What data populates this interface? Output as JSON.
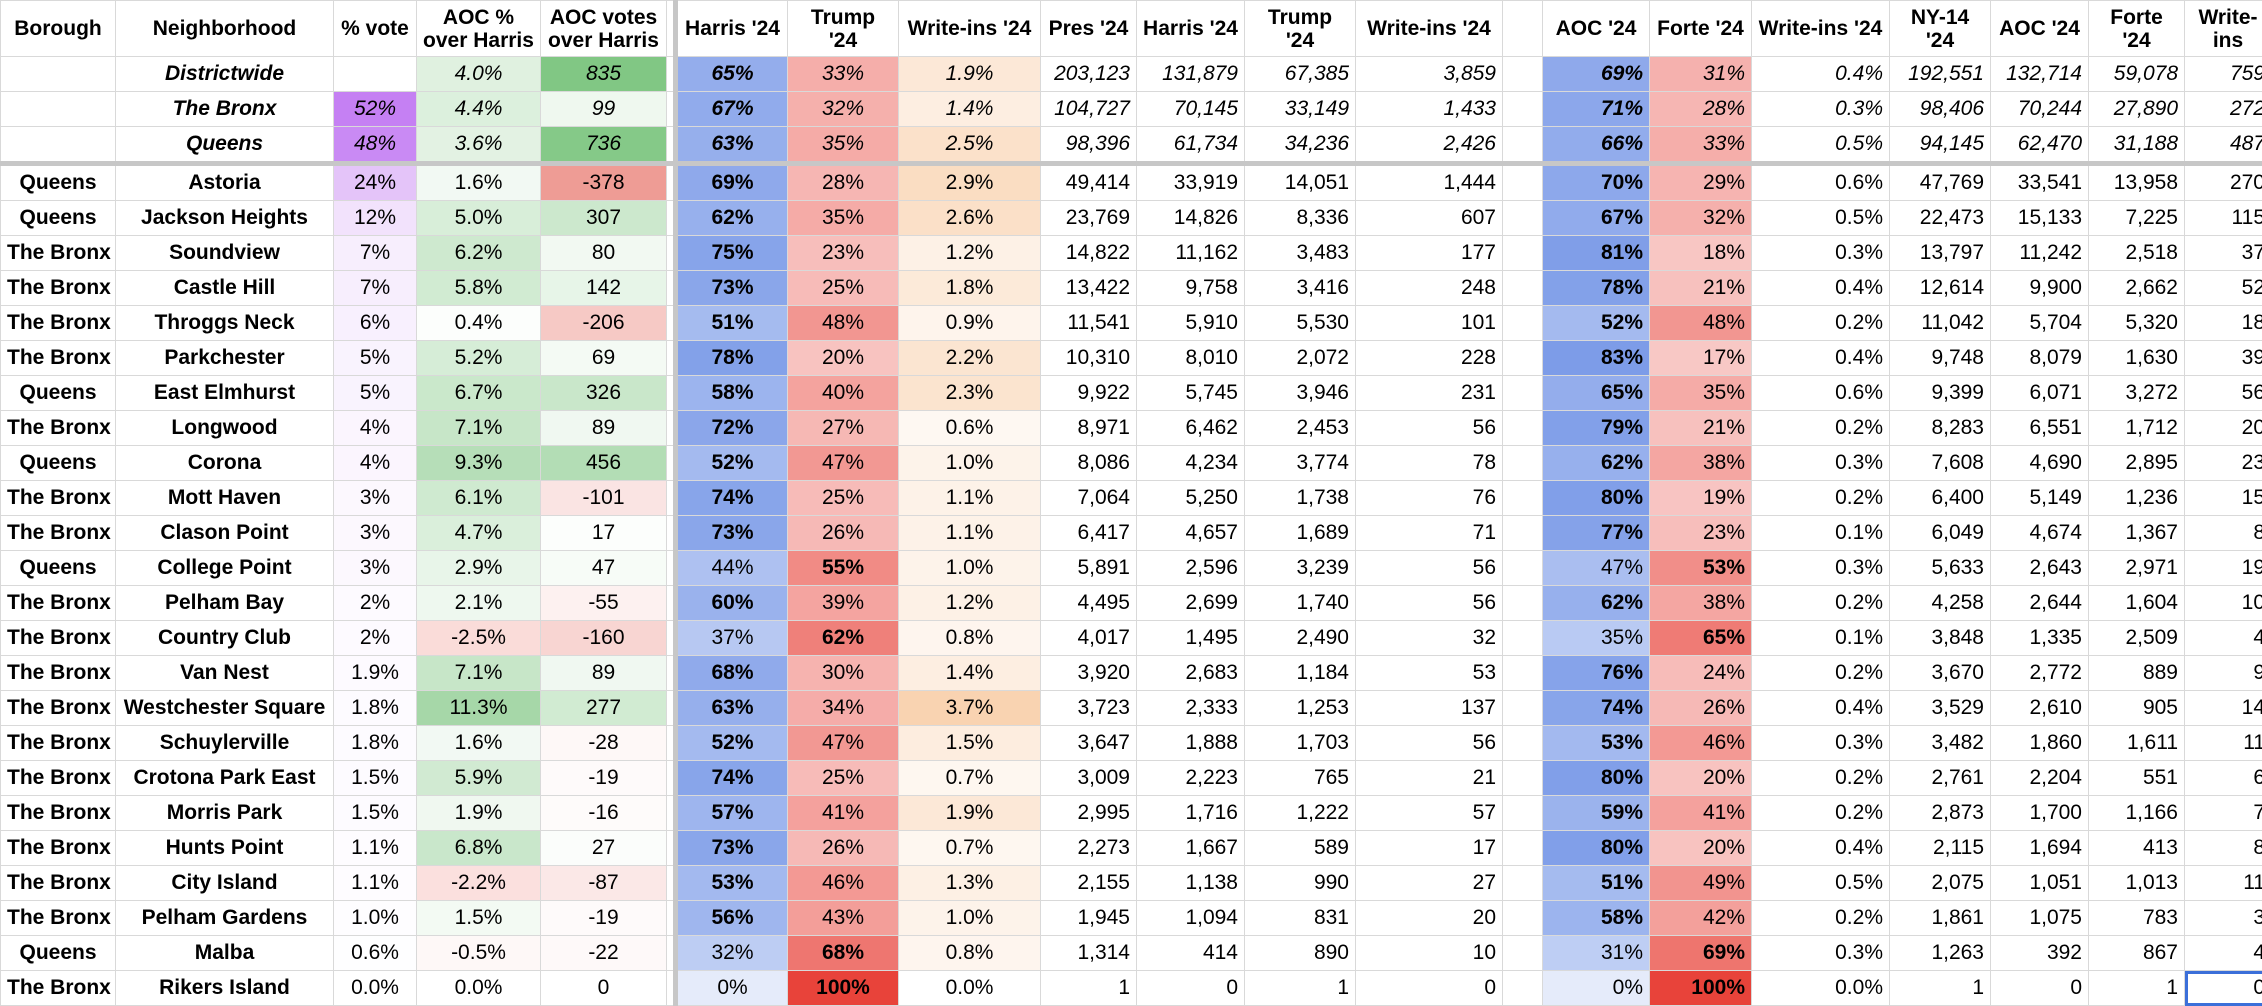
{
  "headers": [
    "Borough",
    "Neighborhood",
    "% vote",
    "AOC % over Harris",
    "AOC votes over Harris",
    "Harris '24",
    "Trump '24",
    "Write-ins '24",
    "Pres '24",
    "Harris '24",
    "Trump '24",
    "Write-ins '24",
    "",
    "AOC '24",
    "Forte '24",
    "Write-ins '24",
    "NY-14 '24",
    "AOC '24",
    "Forte '24",
    "Write-ins"
  ],
  "summary_rows": [
    [
      "",
      "Districtwide",
      "",
      "4.0%",
      "835",
      "65%",
      "33%",
      "1.9%",
      "203,123",
      "131,879",
      "67,385",
      "3,859",
      "",
      "69%",
      "31%",
      "0.4%",
      "192,551",
      "132,714",
      "59,078",
      "759"
    ],
    [
      "",
      "The Bronx",
      "52%",
      "4.4%",
      "99",
      "67%",
      "32%",
      "1.4%",
      "104,727",
      "70,145",
      "33,149",
      "1,433",
      "",
      "71%",
      "28%",
      "0.3%",
      "98,406",
      "70,244",
      "27,890",
      "272"
    ],
    [
      "",
      "Queens",
      "48%",
      "3.6%",
      "736",
      "63%",
      "35%",
      "2.5%",
      "98,396",
      "61,734",
      "34,236",
      "2,426",
      "",
      "66%",
      "33%",
      "0.5%",
      "94,145",
      "62,470",
      "31,188",
      "487"
    ]
  ],
  "rows": [
    [
      "Queens",
      "Astoria",
      "24%",
      "1.6%",
      "-378",
      "69%",
      "28%",
      "2.9%",
      "49,414",
      "33,919",
      "14,051",
      "1,444",
      "",
      "70%",
      "29%",
      "0.6%",
      "47,769",
      "33,541",
      "13,958",
      "270"
    ],
    [
      "Queens",
      "Jackson Heights",
      "12%",
      "5.0%",
      "307",
      "62%",
      "35%",
      "2.6%",
      "23,769",
      "14,826",
      "8,336",
      "607",
      "",
      "67%",
      "32%",
      "0.5%",
      "22,473",
      "15,133",
      "7,225",
      "115"
    ],
    [
      "The Bronx",
      "Soundview",
      "7%",
      "6.2%",
      "80",
      "75%",
      "23%",
      "1.2%",
      "14,822",
      "11,162",
      "3,483",
      "177",
      "",
      "81%",
      "18%",
      "0.3%",
      "13,797",
      "11,242",
      "2,518",
      "37"
    ],
    [
      "The Bronx",
      "Castle Hill",
      "7%",
      "5.8%",
      "142",
      "73%",
      "25%",
      "1.8%",
      "13,422",
      "9,758",
      "3,416",
      "248",
      "",
      "78%",
      "21%",
      "0.4%",
      "12,614",
      "9,900",
      "2,662",
      "52"
    ],
    [
      "The Bronx",
      "Throggs Neck",
      "6%",
      "0.4%",
      "-206",
      "51%",
      "48%",
      "0.9%",
      "11,541",
      "5,910",
      "5,530",
      "101",
      "",
      "52%",
      "48%",
      "0.2%",
      "11,042",
      "5,704",
      "5,320",
      "18"
    ],
    [
      "The Bronx",
      "Parkchester",
      "5%",
      "5.2%",
      "69",
      "78%",
      "20%",
      "2.2%",
      "10,310",
      "8,010",
      "2,072",
      "228",
      "",
      "83%",
      "17%",
      "0.4%",
      "9,748",
      "8,079",
      "1,630",
      "39"
    ],
    [
      "Queens",
      "East Elmhurst",
      "5%",
      "6.7%",
      "326",
      "58%",
      "40%",
      "2.3%",
      "9,922",
      "5,745",
      "3,946",
      "231",
      "",
      "65%",
      "35%",
      "0.6%",
      "9,399",
      "6,071",
      "3,272",
      "56"
    ],
    [
      "The Bronx",
      "Longwood",
      "4%",
      "7.1%",
      "89",
      "72%",
      "27%",
      "0.6%",
      "8,971",
      "6,462",
      "2,453",
      "56",
      "",
      "79%",
      "21%",
      "0.2%",
      "8,283",
      "6,551",
      "1,712",
      "20"
    ],
    [
      "Queens",
      "Corona",
      "4%",
      "9.3%",
      "456",
      "52%",
      "47%",
      "1.0%",
      "8,086",
      "4,234",
      "3,774",
      "78",
      "",
      "62%",
      "38%",
      "0.3%",
      "7,608",
      "4,690",
      "2,895",
      "23"
    ],
    [
      "The Bronx",
      "Mott Haven",
      "3%",
      "6.1%",
      "-101",
      "74%",
      "25%",
      "1.1%",
      "7,064",
      "5,250",
      "1,738",
      "76",
      "",
      "80%",
      "19%",
      "0.2%",
      "6,400",
      "5,149",
      "1,236",
      "15"
    ],
    [
      "The Bronx",
      "Clason Point",
      "3%",
      "4.7%",
      "17",
      "73%",
      "26%",
      "1.1%",
      "6,417",
      "4,657",
      "1,689",
      "71",
      "",
      "77%",
      "23%",
      "0.1%",
      "6,049",
      "4,674",
      "1,367",
      "8"
    ],
    [
      "Queens",
      "College Point",
      "3%",
      "2.9%",
      "47",
      "44%",
      "55%",
      "1.0%",
      "5,891",
      "2,596",
      "3,239",
      "56",
      "",
      "47%",
      "53%",
      "0.3%",
      "5,633",
      "2,643",
      "2,971",
      "19"
    ],
    [
      "The Bronx",
      "Pelham Bay",
      "2%",
      "2.1%",
      "-55",
      "60%",
      "39%",
      "1.2%",
      "4,495",
      "2,699",
      "1,740",
      "56",
      "",
      "62%",
      "38%",
      "0.2%",
      "4,258",
      "2,644",
      "1,604",
      "10"
    ],
    [
      "The Bronx",
      "Country Club",
      "2%",
      "-2.5%",
      "-160",
      "37%",
      "62%",
      "0.8%",
      "4,017",
      "1,495",
      "2,490",
      "32",
      "",
      "35%",
      "65%",
      "0.1%",
      "3,848",
      "1,335",
      "2,509",
      "4"
    ],
    [
      "The Bronx",
      "Van Nest",
      "1.9%",
      "7.1%",
      "89",
      "68%",
      "30%",
      "1.4%",
      "3,920",
      "2,683",
      "1,184",
      "53",
      "",
      "76%",
      "24%",
      "0.2%",
      "3,670",
      "2,772",
      "889",
      "9"
    ],
    [
      "The Bronx",
      "Westchester Square",
      "1.8%",
      "11.3%",
      "277",
      "63%",
      "34%",
      "3.7%",
      "3,723",
      "2,333",
      "1,253",
      "137",
      "",
      "74%",
      "26%",
      "0.4%",
      "3,529",
      "2,610",
      "905",
      "14"
    ],
    [
      "The Bronx",
      "Schuylerville",
      "1.8%",
      "1.6%",
      "-28",
      "52%",
      "47%",
      "1.5%",
      "3,647",
      "1,888",
      "1,703",
      "56",
      "",
      "53%",
      "46%",
      "0.3%",
      "3,482",
      "1,860",
      "1,611",
      "11"
    ],
    [
      "The Bronx",
      "Crotona Park East",
      "1.5%",
      "5.9%",
      "-19",
      "74%",
      "25%",
      "0.7%",
      "3,009",
      "2,223",
      "765",
      "21",
      "",
      "80%",
      "20%",
      "0.2%",
      "2,761",
      "2,204",
      "551",
      "6"
    ],
    [
      "The Bronx",
      "Morris Park",
      "1.5%",
      "1.9%",
      "-16",
      "57%",
      "41%",
      "1.9%",
      "2,995",
      "1,716",
      "1,222",
      "57",
      "",
      "59%",
      "41%",
      "0.2%",
      "2,873",
      "1,700",
      "1,166",
      "7"
    ],
    [
      "The Bronx",
      "Hunts Point",
      "1.1%",
      "6.8%",
      "27",
      "73%",
      "26%",
      "0.7%",
      "2,273",
      "1,667",
      "589",
      "17",
      "",
      "80%",
      "20%",
      "0.4%",
      "2,115",
      "1,694",
      "413",
      "8"
    ],
    [
      "The Bronx",
      "City Island",
      "1.1%",
      "-2.2%",
      "-87",
      "53%",
      "46%",
      "1.3%",
      "2,155",
      "1,138",
      "990",
      "27",
      "",
      "51%",
      "49%",
      "0.5%",
      "2,075",
      "1,051",
      "1,013",
      "11"
    ],
    [
      "The Bronx",
      "Pelham Gardens",
      "1.0%",
      "1.5%",
      "-19",
      "56%",
      "43%",
      "1.0%",
      "1,945",
      "1,094",
      "831",
      "20",
      "",
      "58%",
      "42%",
      "0.2%",
      "1,861",
      "1,075",
      "783",
      "3"
    ],
    [
      "Queens",
      "Malba",
      "0.6%",
      "-0.5%",
      "-22",
      "32%",
      "68%",
      "0.8%",
      "1,314",
      "414",
      "890",
      "10",
      "",
      "31%",
      "69%",
      "0.3%",
      "1,263",
      "392",
      "867",
      "4"
    ],
    [
      "The Bronx",
      "Rikers Island",
      "0.0%",
      "0.0%",
      "0",
      "0%",
      "100%",
      "0.0%",
      "1",
      "0",
      "1",
      "0",
      "",
      "0%",
      "100%",
      "0.0%",
      "1",
      "0",
      "1",
      "0"
    ]
  ],
  "colors": {
    "blue_strong": "#7d9ce8",
    "blue_light": "#cbd8f7",
    "red_strong": "#e8433a",
    "red_light": "#f8d4d1",
    "green_strong": "#81c784",
    "green_light": "#e8f5e9",
    "purple_strong": "#c580f3",
    "purple_light": "#f3e6fc",
    "orange_light": "#fdf0e2"
  }
}
